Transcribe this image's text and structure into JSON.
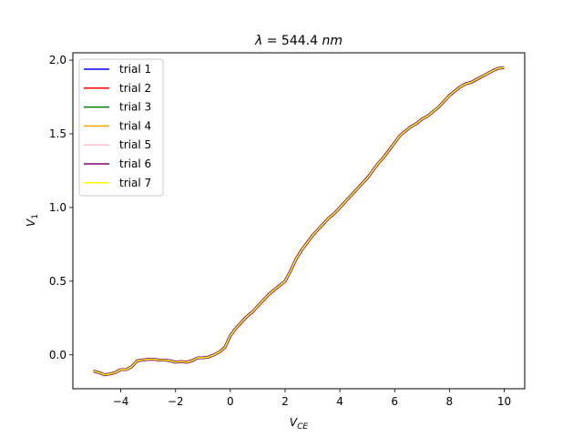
{
  "chart_data": {
    "type": "line",
    "title": {
      "lambda": "λ",
      "equals": " = 544.4 ",
      "unit": "nm"
    },
    "xlabel": {
      "base": "V",
      "sub": "CE"
    },
    "ylabel": {
      "base": "V",
      "sub": "1"
    },
    "xlim": [
      -5.75,
      10.75
    ],
    "ylim": [
      -0.23,
      2.05
    ],
    "xticks": [
      -4,
      -2,
      0,
      2,
      4,
      6,
      8,
      10
    ],
    "xtick_labels": [
      "−4",
      "−2",
      "0",
      "2",
      "4",
      "6",
      "8",
      "10"
    ],
    "yticks": [
      0.0,
      0.5,
      1.0,
      1.5,
      2.0
    ],
    "ytick_labels": [
      "0.0",
      "0.5",
      "1.0",
      "1.5",
      "2.0"
    ],
    "grid": false,
    "legend_position": "top-left",
    "x": [
      -5.0,
      -4.8,
      -4.6,
      -4.4,
      -4.2,
      -4.0,
      -3.8,
      -3.6,
      -3.4,
      -3.2,
      -3.0,
      -2.8,
      -2.6,
      -2.4,
      -2.2,
      -2.0,
      -1.8,
      -1.6,
      -1.4,
      -1.2,
      -1.0,
      -0.8,
      -0.6,
      -0.4,
      -0.2,
      0.0,
      0.2,
      0.4,
      0.6,
      0.8,
      1.0,
      1.2,
      1.4,
      1.6,
      1.8,
      2.0,
      2.2,
      2.4,
      2.6,
      2.8,
      3.0,
      3.2,
      3.4,
      3.6,
      3.8,
      4.0,
      4.2,
      4.4,
      4.6,
      4.8,
      5.0,
      5.2,
      5.4,
      5.6,
      5.8,
      6.0,
      6.2,
      6.4,
      6.6,
      6.8,
      7.0,
      7.2,
      7.4,
      7.6,
      7.8,
      8.0,
      8.2,
      8.4,
      8.6,
      8.8,
      9.0,
      9.2,
      9.4,
      9.6,
      9.8,
      10.0
    ],
    "series": [
      {
        "name": "trial 1",
        "color": "#0000ff"
      },
      {
        "name": "trial 2",
        "color": "#ff0000"
      },
      {
        "name": "trial 3",
        "color": "#008000"
      },
      {
        "name": "trial 4",
        "color": "#ffa500"
      },
      {
        "name": "trial 5",
        "color": "#ffc0cb"
      },
      {
        "name": "trial 6",
        "color": "#800080"
      },
      {
        "name": "trial 7",
        "color": "#ffff00"
      }
    ],
    "values": [
      -0.11,
      -0.12,
      -0.135,
      -0.13,
      -0.12,
      -0.1,
      -0.1,
      -0.08,
      -0.04,
      -0.035,
      -0.03,
      -0.03,
      -0.035,
      -0.035,
      -0.04,
      -0.05,
      -0.045,
      -0.05,
      -0.04,
      -0.02,
      -0.02,
      -0.015,
      0.0,
      0.02,
      0.05,
      0.13,
      0.18,
      0.22,
      0.26,
      0.29,
      0.33,
      0.37,
      0.41,
      0.44,
      0.47,
      0.5,
      0.57,
      0.65,
      0.71,
      0.76,
      0.81,
      0.85,
      0.89,
      0.93,
      0.96,
      1.0,
      1.04,
      1.08,
      1.12,
      1.16,
      1.2,
      1.25,
      1.3,
      1.34,
      1.39,
      1.44,
      1.49,
      1.52,
      1.55,
      1.57,
      1.6,
      1.62,
      1.65,
      1.68,
      1.72,
      1.76,
      1.79,
      1.82,
      1.84,
      1.85,
      1.87,
      1.89,
      1.91,
      1.93,
      1.945,
      1.95
    ]
  }
}
